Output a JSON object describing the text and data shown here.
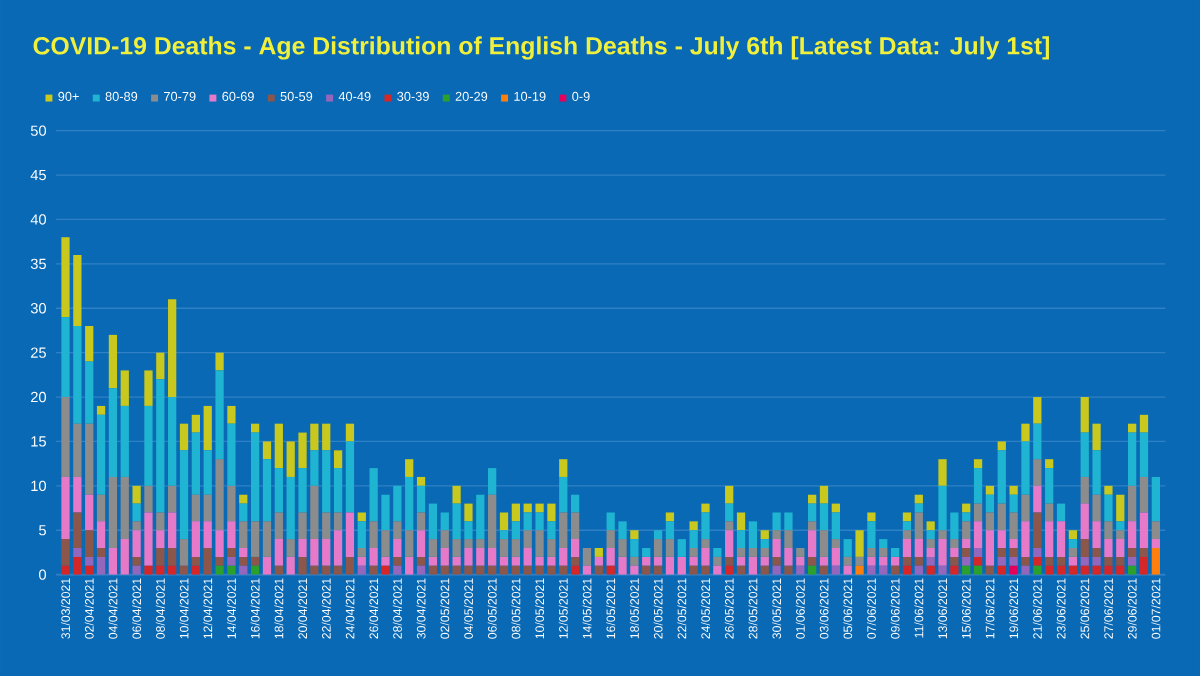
{
  "chart_data": {
    "type": "bar",
    "title": "COVID-19 Deaths - Age Distribution of English Deaths - July 6th [Latest Data: July 1st]",
    "categories": [
      "31/03/2021",
      null,
      "02/04/2021",
      null,
      "04/04/2021",
      null,
      "06/04/2021",
      null,
      "08/04/2021",
      null,
      "10/04/2021",
      null,
      "12/04/2021",
      null,
      "14/04/2021",
      null,
      "16/04/2021",
      null,
      "18/04/2021",
      null,
      "20/04/2021",
      null,
      "22/04/2021",
      null,
      "24/04/2021",
      null,
      "26/04/2021",
      null,
      "28/04/2021",
      null,
      "30/04/2021",
      null,
      "02/05/2021",
      null,
      "04/05/2021",
      null,
      "06/05/2021",
      null,
      "08/05/2021",
      null,
      "10/05/2021",
      null,
      "12/05/2021",
      null,
      "14/05/2021",
      null,
      "16/05/2021",
      null,
      "18/05/2021",
      null,
      "20/05/2021",
      null,
      "22/05/2021",
      null,
      "24/05/2021",
      null,
      "26/05/2021",
      null,
      "28/05/2021",
      null,
      "30/05/2021",
      null,
      "01/06/2021",
      null,
      "03/06/2021",
      null,
      "05/06/2021",
      null,
      "07/06/2021",
      null,
      "09/06/2021",
      null,
      "11/06/2021",
      null,
      "13/06/2021",
      null,
      "15/06/2021",
      null,
      "17/06/2021",
      null,
      "19/06/2021",
      null,
      "21/06/2021",
      null,
      "23/06/2021",
      null,
      "25/06/2021",
      null,
      "27/06/2021",
      null,
      "29/06/2021",
      null,
      "01/07/2021"
    ],
    "stacked": true,
    "ylim": [
      0,
      50
    ],
    "yticks": [
      0,
      5,
      10,
      15,
      20,
      25,
      30,
      35,
      40,
      45,
      50
    ],
    "grid": "y",
    "legend": "top left",
    "series": [
      {
        "name": "0-9",
        "color": "#e6005c",
        "values": [
          0,
          0,
          0,
          0,
          0,
          0,
          0,
          0,
          0,
          0,
          0,
          0,
          0,
          0,
          0,
          0,
          0,
          0,
          0,
          0,
          0,
          0,
          0,
          0,
          0,
          0,
          0,
          0,
          0,
          0,
          0,
          0,
          0,
          0,
          0,
          0,
          0,
          0,
          0,
          0,
          0,
          0,
          0,
          0,
          0,
          0,
          0,
          0,
          0,
          0,
          0,
          0,
          0,
          0,
          0,
          0,
          0,
          0,
          0,
          0,
          0,
          0,
          0,
          0,
          0,
          0,
          0,
          0,
          0,
          0,
          0,
          0,
          0,
          0,
          0,
          0,
          0,
          0,
          0,
          0,
          1,
          0,
          0,
          0,
          0,
          0,
          0,
          0,
          0,
          0,
          0,
          0,
          0
        ]
      },
      {
        "name": "10-19",
        "color": "#ff7f0e",
        "values": [
          0,
          0,
          0,
          0,
          0,
          0,
          0,
          0,
          0,
          0,
          0,
          0,
          0,
          0,
          0,
          0,
          0,
          0,
          0,
          0,
          0,
          0,
          0,
          0,
          0,
          0,
          0,
          0,
          0,
          0,
          0,
          0,
          0,
          0,
          0,
          0,
          0,
          0,
          0,
          0,
          0,
          0,
          0,
          0,
          0,
          0,
          0,
          0,
          0,
          0,
          0,
          0,
          0,
          0,
          0,
          0,
          0,
          0,
          0,
          0,
          0,
          0,
          0,
          0,
          0,
          0,
          0,
          1,
          0,
          0,
          0,
          0,
          0,
          0,
          0,
          0,
          0,
          0,
          0,
          0,
          0,
          0,
          0,
          0,
          0,
          0,
          0,
          0,
          0,
          0,
          0,
          0,
          3
        ]
      },
      {
        "name": "20-29",
        "color": "#2ca02c",
        "values": [
          0,
          0,
          0,
          0,
          0,
          0,
          0,
          0,
          0,
          0,
          0,
          0,
          0,
          1,
          1,
          0,
          1,
          0,
          0,
          0,
          0,
          0,
          0,
          0,
          0,
          0,
          0,
          0,
          0,
          0,
          0,
          0,
          0,
          0,
          0,
          0,
          0,
          0,
          0,
          0,
          0,
          0,
          0,
          0,
          0,
          0,
          0,
          0,
          0,
          0,
          0,
          0,
          0,
          0,
          0,
          0,
          0,
          0,
          0,
          0,
          0,
          0,
          0,
          1,
          0,
          0,
          0,
          0,
          0,
          0,
          0,
          0,
          0,
          0,
          0,
          0,
          1,
          1,
          0,
          0,
          0,
          0,
          1,
          0,
          0,
          0,
          0,
          0,
          0,
          0,
          1,
          0,
          0
        ]
      },
      {
        "name": "30-39",
        "color": "#d62728",
        "values": [
          1,
          2,
          1,
          0,
          0,
          0,
          0,
          1,
          1,
          1,
          0,
          1,
          0,
          0,
          0,
          0,
          0,
          0,
          0,
          0,
          0,
          0,
          0,
          0,
          0,
          0,
          0,
          1,
          0,
          0,
          0,
          0,
          0,
          0,
          0,
          0,
          0,
          0,
          0,
          0,
          0,
          0,
          0,
          1,
          0,
          0,
          1,
          0,
          0,
          0,
          0,
          0,
          0,
          0,
          0,
          0,
          1,
          0,
          0,
          0,
          0,
          0,
          0,
          0,
          0,
          0,
          0,
          0,
          0,
          0,
          0,
          1,
          0,
          1,
          0,
          1,
          0,
          1,
          0,
          1,
          0,
          0,
          1,
          1,
          1,
          1,
          1,
          1,
          1,
          1,
          0,
          2,
          0
        ]
      },
      {
        "name": "40-49",
        "color": "#9467bd",
        "values": [
          0,
          1,
          1,
          2,
          0,
          0,
          1,
          0,
          0,
          0,
          0,
          0,
          0,
          0,
          1,
          1,
          0,
          0,
          0,
          0,
          0,
          0,
          0,
          0,
          0,
          1,
          0,
          0,
          1,
          0,
          1,
          0,
          0,
          0,
          0,
          0,
          0,
          0,
          0,
          0,
          0,
          0,
          0,
          0,
          0,
          0,
          0,
          0,
          0,
          0,
          0,
          0,
          0,
          0,
          0,
          0,
          0,
          0,
          0,
          0,
          1,
          0,
          1,
          0,
          0,
          1,
          0,
          0,
          1,
          1,
          0,
          0,
          1,
          1,
          1,
          0,
          1,
          1,
          0,
          1,
          1,
          1,
          1,
          0,
          0,
          0,
          1,
          1,
          0,
          0,
          1,
          0,
          0
        ]
      },
      {
        "name": "50-59",
        "color": "#8c564b",
        "values": [
          3,
          4,
          3,
          1,
          0,
          0,
          1,
          0,
          2,
          2,
          1,
          1,
          3,
          1,
          1,
          1,
          1,
          0,
          1,
          0,
          2,
          1,
          1,
          1,
          2,
          0,
          1,
          0,
          1,
          0,
          1,
          1,
          1,
          1,
          1,
          1,
          1,
          1,
          1,
          1,
          1,
          1,
          1,
          1,
          0,
          1,
          0,
          0,
          0,
          1,
          1,
          0,
          0,
          1,
          1,
          0,
          1,
          1,
          0,
          1,
          1,
          1,
          0,
          1,
          1,
          0,
          0,
          0,
          0,
          0,
          1,
          1,
          1,
          0,
          0,
          1,
          1,
          0,
          1,
          1,
          1,
          1,
          4,
          1,
          1,
          0,
          2,
          1,
          1,
          1,
          1,
          1,
          0
        ]
      },
      {
        "name": "60-69",
        "color": "#e67ac8",
        "values": [
          7,
          4,
          4,
          3,
          3,
          4,
          3,
          6,
          2,
          4,
          0,
          4,
          3,
          3,
          3,
          1,
          0,
          2,
          3,
          2,
          2,
          3,
          3,
          4,
          5,
          1,
          2,
          1,
          2,
          2,
          3,
          1,
          2,
          1,
          2,
          2,
          2,
          1,
          1,
          2,
          1,
          1,
          2,
          2,
          1,
          1,
          2,
          2,
          1,
          1,
          1,
          2,
          2,
          1,
          2,
          1,
          3,
          1,
          2,
          1,
          2,
          2,
          1,
          3,
          1,
          2,
          1,
          0,
          1,
          1,
          1,
          2,
          2,
          1,
          3,
          1,
          1,
          3,
          4,
          2,
          1,
          4,
          3,
          4,
          4,
          1,
          4,
          3,
          2,
          2,
          3,
          4,
          1
        ]
      },
      {
        "name": "70-79",
        "color": "#8c8c8c",
        "values": [
          9,
          6,
          8,
          3,
          8,
          7,
          1,
          3,
          2,
          3,
          3,
          3,
          3,
          8,
          4,
          3,
          4,
          4,
          3,
          2,
          3,
          6,
          3,
          2,
          0,
          1,
          3,
          3,
          2,
          3,
          2,
          2,
          2,
          2,
          1,
          1,
          6,
          2,
          2,
          2,
          3,
          2,
          4,
          3,
          2,
          0,
          2,
          2,
          1,
          0,
          2,
          2,
          0,
          1,
          1,
          1,
          1,
          1,
          1,
          1,
          1,
          2,
          1,
          1,
          3,
          1,
          1,
          1,
          1,
          1,
          0,
          1,
          3,
          1,
          1,
          1,
          2,
          2,
          2,
          3,
          3,
          3,
          3,
          2,
          0,
          1,
          3,
          3,
          2,
          1,
          4,
          4,
          2
        ]
      },
      {
        "name": "80-89",
        "color": "#1fb4d2",
        "values": [
          9,
          11,
          7,
          9,
          10,
          8,
          2,
          9,
          15,
          10,
          10,
          7,
          5,
          10,
          7,
          2,
          10,
          7,
          5,
          7,
          5,
          4,
          7,
          5,
          8,
          3,
          6,
          4,
          4,
          6,
          3,
          4,
          2,
          4,
          2,
          5,
          3,
          1,
          2,
          2,
          2,
          2,
          4,
          2,
          0,
          0,
          2,
          2,
          2,
          1,
          1,
          2,
          2,
          2,
          3,
          1,
          2,
          2,
          3,
          1,
          2,
          2,
          0,
          2,
          3,
          3,
          2,
          0,
          3,
          1,
          1,
          1,
          1,
          1,
          5,
          3,
          1,
          4,
          2,
          6,
          2,
          6,
          4,
          4,
          2,
          1,
          5,
          5,
          3,
          1,
          6,
          5,
          5
        ]
      },
      {
        "name": "90+",
        "color": "#c8c81e",
        "values": [
          9,
          8,
          4,
          1,
          6,
          4,
          2,
          4,
          3,
          11,
          3,
          2,
          5,
          2,
          2,
          1,
          1,
          2,
          5,
          4,
          4,
          3,
          3,
          2,
          2,
          1,
          0,
          0,
          0,
          2,
          1,
          0,
          0,
          2,
          2,
          0,
          0,
          2,
          2,
          1,
          1,
          2,
          2,
          0,
          0,
          1,
          0,
          0,
          1,
          0,
          0,
          1,
          0,
          1,
          1,
          0,
          2,
          2,
          0,
          1,
          0,
          0,
          0,
          1,
          2,
          1,
          0,
          3,
          1,
          0,
          0,
          1,
          1,
          1,
          3,
          0,
          1,
          1,
          1,
          1,
          1,
          2,
          3,
          1,
          0,
          1,
          4,
          3,
          1,
          3,
          1,
          2,
          0
        ]
      }
    ]
  }
}
